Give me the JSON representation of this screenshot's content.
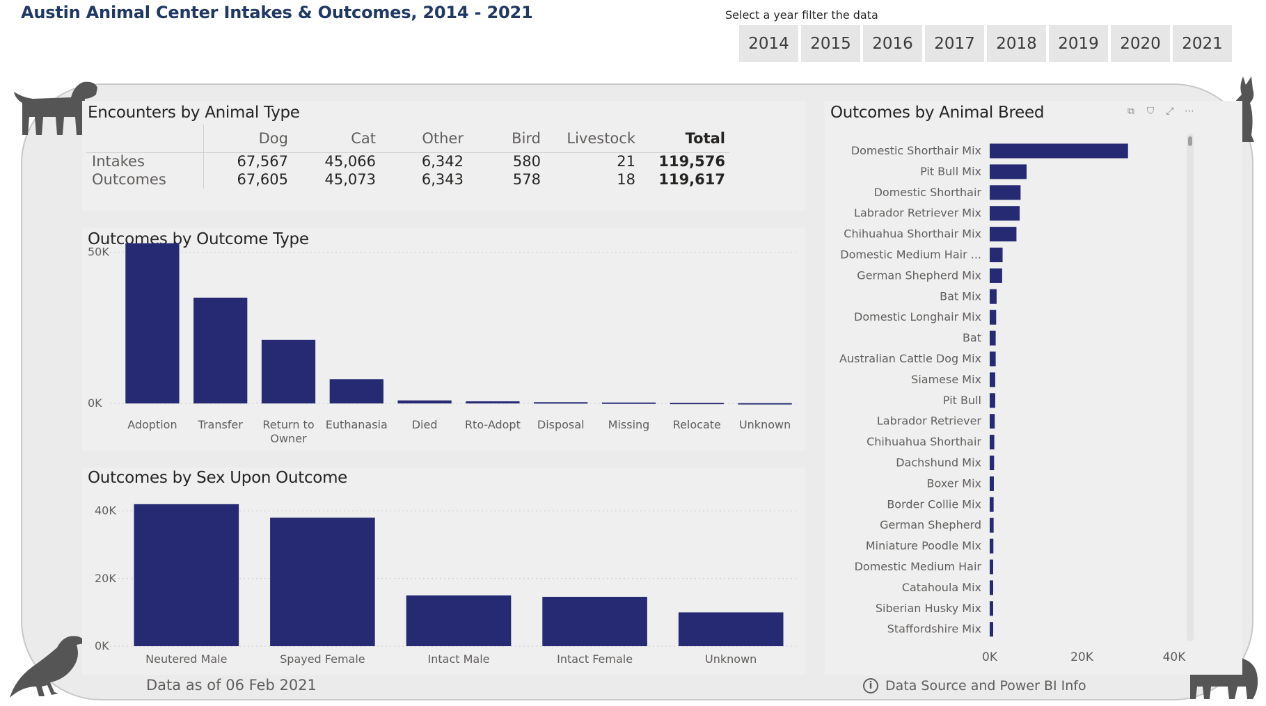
{
  "header": {
    "title": "Austin Animal Center Intakes & Outcomes, 2014 - 2021",
    "filter_caption": "Select a year filter the data",
    "years": [
      "2014",
      "2015",
      "2016",
      "2017",
      "2018",
      "2019",
      "2020",
      "2021"
    ]
  },
  "encounters": {
    "title": "Encounters by Animal Type",
    "columns": [
      "Dog",
      "Cat",
      "Other",
      "Bird",
      "Livestock",
      "Total"
    ],
    "rows": [
      {
        "label": "Intakes",
        "values": [
          "67,567",
          "45,066",
          "6,342",
          "580",
          "21",
          "119,576"
        ]
      },
      {
        "label": "Outcomes",
        "values": [
          "67,605",
          "45,073",
          "6,343",
          "578",
          "18",
          "119,617"
        ]
      }
    ]
  },
  "footer": {
    "data_as_of": "Data as of 06 Feb 2021",
    "data_source": "Data Source and Power BI Info"
  },
  "colors": {
    "bar": "#252a72",
    "grid": "#c8c8c8"
  },
  "icons": [
    "dog-icon",
    "cat-icon",
    "bird-icon",
    "cat-silhouette-icon",
    "copy-icon",
    "filter-icon",
    "expand-icon",
    "more-options-icon",
    "info-icon"
  ],
  "chart_data": [
    {
      "type": "bar",
      "title": "Outcomes by Outcome Type",
      "categories": [
        "Adoption",
        "Transfer",
        "Return to Owner",
        "Euthanasia",
        "Died",
        "Rto-Adopt",
        "Disposal",
        "Missing",
        "Relocate",
        "Unknown"
      ],
      "values": [
        53000,
        35000,
        21000,
        8000,
        1000,
        700,
        400,
        300,
        200,
        100
      ],
      "ylim": [
        0,
        55000
      ],
      "yticks": [
        {
          "v": 0,
          "l": "0K"
        },
        {
          "v": 50000,
          "l": "50K"
        }
      ],
      "xlabel": "",
      "ylabel": ""
    },
    {
      "type": "bar",
      "title": "Outcomes by Sex Upon Outcome",
      "categories": [
        "Neutered Male",
        "Spayed Female",
        "Intact Male",
        "Intact Female",
        "Unknown"
      ],
      "values": [
        42000,
        38000,
        15000,
        14600,
        10000
      ],
      "ylim": [
        0,
        43000
      ],
      "yticks": [
        {
          "v": 0,
          "l": "0K"
        },
        {
          "v": 20000,
          "l": "20K"
        },
        {
          "v": 40000,
          "l": "40K"
        }
      ],
      "xlabel": "",
      "ylabel": ""
    },
    {
      "type": "bar",
      "orientation": "horizontal",
      "title": "Outcomes by Animal Breed",
      "categories": [
        "Domestic Shorthair Mix",
        "Pit Bull Mix",
        "Domestic Shorthair",
        "Labrador Retriever Mix",
        "Chihuahua Shorthair Mix",
        "Domestic Medium Hair ...",
        "German Shepherd Mix",
        "Bat Mix",
        "Domestic Longhair Mix",
        "Bat",
        "Australian Cattle Dog Mix",
        "Siamese Mix",
        "Pit Bull",
        "Labrador Retriever",
        "Chihuahua Shorthair",
        "Dachshund Mix",
        "Boxer Mix",
        "Border Collie Mix",
        "German Shepherd",
        "Miniature Poodle Mix",
        "Domestic Medium Hair",
        "Catahoula Mix",
        "Siberian Husky Mix",
        "Staffordshire Mix"
      ],
      "values": [
        30000,
        8000,
        6700,
        6500,
        5800,
        2800,
        2700,
        1500,
        1400,
        1300,
        1300,
        1200,
        1200,
        1100,
        1000,
        950,
        900,
        850,
        850,
        800,
        750,
        700,
        700,
        650
      ],
      "xlim": [
        0,
        40000
      ],
      "xticks": [
        {
          "v": 0,
          "l": "0K"
        },
        {
          "v": 20000,
          "l": "20K"
        },
        {
          "v": 40000,
          "l": "40K"
        }
      ],
      "xlabel": "",
      "ylabel": ""
    }
  ]
}
